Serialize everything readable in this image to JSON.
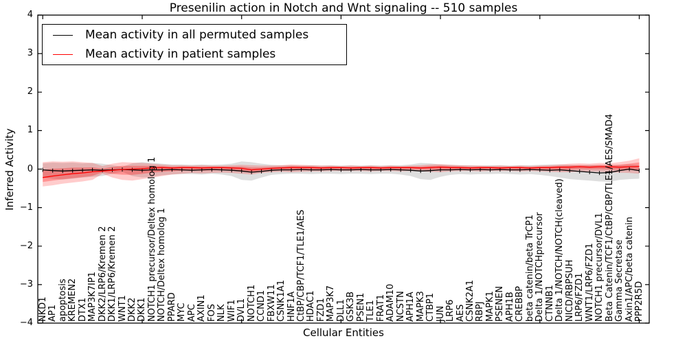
{
  "figure": {
    "title": "Presenilin action in Notch and Wnt signaling -- 510 samples",
    "xlabel": "Cellular Entities",
    "ylabel": "Inferred Activity"
  },
  "legend": {
    "entries": [
      {
        "label": "Mean activity in all permuted samples",
        "color": "#000000"
      },
      {
        "label": "Mean activity in patient samples",
        "color": "#ff0000"
      }
    ]
  },
  "colors": {
    "permuted_line": "#000000",
    "patient_line": "#ff0000",
    "permuted_band": "rgba(0,0,0,0.13)",
    "patient_band_outer": "rgba(255,0,0,0.20)",
    "patient_band_inner": "rgba(255,0,0,0.28)",
    "axes": "#000000",
    "background": "#ffffff"
  },
  "chart_data": {
    "type": "line",
    "title": "Presenilin action in Notch and Wnt signaling -- 510 samples",
    "xlabel": "Cellular Entities",
    "ylabel": "Inferred Activity",
    "ylim": [
      -4,
      4
    ],
    "grid": false,
    "legend_position": "upper left",
    "y_ticks": [
      4,
      3,
      2,
      1,
      0,
      -1,
      -2,
      -3,
      -4
    ],
    "y_tick_labels": [
      "4",
      "3",
      "2",
      "1",
      "0",
      "−1",
      "−2",
      "−3",
      "−4"
    ],
    "x_major_tick_indices": [
      0,
      10,
      20,
      30,
      40,
      50,
      60
    ],
    "categories": [
      "NKD1",
      "AP1",
      "apoptosis",
      "KREMEN2",
      "DTX1",
      "MAP3K7IP1",
      "DKK2/LRP6/Kremen 2",
      "DKK1/LRP6/Kremen 2",
      "WNT1",
      "DKK2",
      "DKK1",
      "NOTCH1 precursor/Deltex homolog 1",
      "NOTCH/Deltex homolog 1",
      "PPARD",
      "MYC",
      "APC",
      "AXIN1",
      "FOS",
      "NLK",
      "WIF1",
      "DVL1",
      "NOTCH1",
      "CCND1",
      "FBXW11",
      "CSNK1A1",
      "HNF1A",
      "CtBP/CBP/TCF1/TLE1/AES",
      "HDAC1",
      "FZD1",
      "MAP3K7",
      "DLL1",
      "GSK3B",
      "PSEN1",
      "TLE1",
      "FRAT1",
      "ADAM10",
      "NCSTN",
      "APH1A",
      "MAPK3",
      "CTBP1",
      "JUN",
      "LRP6",
      "AES",
      "CSNK2A1",
      "RBPJ",
      "MAPK1",
      "PSENEN",
      "APH1B",
      "CREBBP",
      "beta catenin/beta TrCP1",
      "Delta 1/NOTCHprecursor",
      "CTNNB1",
      "Delta 1/NOTCH/NOTCH(cleaved)",
      "NICD/RBPSUH",
      "LRP6/FZD1",
      "WNT1/LRP6/FZD1",
      "NOTCH1 precursor/DVL1",
      "Beta Catenin/TCF1/CtBP/CBP/TLE1/AES/SMAD4",
      "Gamma Secretase",
      "Axin1/APC/beta catenin",
      "PPP2R5D"
    ],
    "series": [
      {
        "name": "Mean activity in all permuted samples",
        "color": "#000000",
        "values": [
          -0.02,
          -0.04,
          -0.05,
          -0.04,
          -0.03,
          -0.02,
          -0.03,
          -0.02,
          -0.01,
          -0.02,
          -0.03,
          -0.02,
          -0.02,
          -0.01,
          -0.02,
          -0.03,
          -0.02,
          -0.01,
          -0.02,
          -0.03,
          -0.05,
          -0.08,
          -0.06,
          -0.03,
          -0.02,
          -0.02,
          -0.01,
          -0.02,
          -0.02,
          -0.01,
          -0.02,
          -0.02,
          -0.01,
          -0.02,
          -0.02,
          -0.01,
          -0.02,
          -0.03,
          -0.05,
          -0.04,
          -0.02,
          -0.02,
          -0.01,
          -0.02,
          -0.01,
          -0.02,
          -0.01,
          -0.02,
          -0.02,
          -0.01,
          -0.02,
          -0.03,
          -0.02,
          -0.04,
          -0.06,
          -0.08,
          -0.1,
          -0.09,
          -0.04,
          0.0,
          -0.04
        ],
        "band_upper": [
          0.15,
          0.17,
          0.16,
          0.17,
          0.15,
          0.16,
          0.14,
          0.1,
          0.06,
          0.15,
          0.18,
          0.16,
          0.14,
          0.12,
          0.12,
          0.11,
          0.12,
          0.11,
          0.12,
          0.14,
          0.2,
          0.18,
          0.14,
          0.11,
          0.1,
          0.1,
          0.09,
          0.1,
          0.09,
          0.1,
          0.09,
          0.1,
          0.09,
          0.1,
          0.09,
          0.1,
          0.1,
          0.12,
          0.16,
          0.15,
          0.12,
          0.11,
          0.1,
          0.1,
          0.09,
          0.1,
          0.1,
          0.09,
          0.1,
          0.1,
          0.11,
          0.12,
          0.12,
          0.11,
          0.1,
          0.11,
          0.1,
          0.09,
          0.1,
          0.12,
          0.1
        ],
        "band_lower": [
          -0.22,
          -0.25,
          -0.27,
          -0.25,
          -0.22,
          -0.2,
          -0.18,
          -0.12,
          -0.07,
          -0.18,
          -0.22,
          -0.2,
          -0.16,
          -0.14,
          -0.13,
          -0.13,
          -0.14,
          -0.12,
          -0.14,
          -0.18,
          -0.28,
          -0.3,
          -0.22,
          -0.15,
          -0.13,
          -0.12,
          -0.12,
          -0.13,
          -0.12,
          -0.12,
          -0.13,
          -0.12,
          -0.12,
          -0.13,
          -0.12,
          -0.12,
          -0.14,
          -0.18,
          -0.26,
          -0.28,
          -0.2,
          -0.15,
          -0.13,
          -0.14,
          -0.13,
          -0.13,
          -0.12,
          -0.13,
          -0.14,
          -0.13,
          -0.15,
          -0.18,
          -0.22,
          -0.26,
          -0.28,
          -0.3,
          -0.32,
          -0.33,
          -0.28,
          -0.26,
          -0.25
        ]
      },
      {
        "name": "Mean activity in patient samples",
        "color": "#ff0000",
        "values": [
          -0.22,
          -0.18,
          -0.15,
          -0.12,
          -0.1,
          -0.07,
          -0.05,
          -0.03,
          -0.01,
          0.0,
          0.01,
          0.03,
          0.04,
          0.03,
          0.04,
          0.04,
          0.03,
          0.04,
          0.04,
          0.03,
          0.02,
          -0.02,
          0.0,
          0.02,
          0.03,
          0.04,
          0.04,
          0.04,
          0.03,
          0.04,
          0.04,
          0.03,
          0.04,
          0.04,
          0.03,
          0.04,
          0.04,
          0.04,
          0.03,
          0.04,
          0.05,
          0.04,
          0.04,
          0.03,
          0.04,
          0.04,
          0.03,
          0.04,
          0.04,
          0.03,
          0.04,
          0.04,
          0.05,
          0.05,
          0.06,
          0.05,
          0.06,
          0.06,
          0.05,
          0.06,
          0.07
        ],
        "band_upper": [
          0.18,
          0.2,
          0.19,
          0.2,
          0.18,
          0.16,
          0.08,
          0.14,
          0.18,
          0.17,
          0.16,
          0.14,
          0.12,
          0.1,
          0.1,
          0.09,
          0.1,
          0.09,
          0.09,
          0.1,
          0.11,
          0.1,
          0.09,
          0.09,
          0.1,
          0.12,
          0.11,
          0.1,
          0.09,
          0.09,
          0.08,
          0.09,
          0.08,
          0.09,
          0.08,
          0.09,
          0.08,
          0.09,
          0.1,
          0.12,
          0.13,
          0.11,
          0.1,
          0.09,
          0.09,
          0.08,
          0.09,
          0.08,
          0.09,
          0.08,
          0.09,
          0.1,
          0.12,
          0.14,
          0.15,
          0.14,
          0.16,
          0.15,
          0.18,
          0.22,
          0.28
        ],
        "band_lower": [
          -0.45,
          -0.42,
          -0.38,
          -0.35,
          -0.32,
          -0.28,
          -0.12,
          -0.22,
          -0.28,
          -0.3,
          -0.26,
          -0.22,
          -0.18,
          -0.14,
          -0.12,
          -0.1,
          -0.11,
          -0.1,
          -0.09,
          -0.1,
          -0.12,
          -0.14,
          -0.1,
          -0.08,
          -0.07,
          -0.08,
          -0.07,
          -0.06,
          -0.06,
          -0.05,
          -0.05,
          -0.05,
          -0.05,
          -0.06,
          -0.05,
          -0.05,
          -0.06,
          -0.05,
          -0.06,
          -0.07,
          -0.08,
          -0.06,
          -0.05,
          -0.05,
          -0.06,
          -0.05,
          -0.05,
          -0.05,
          -0.06,
          -0.05,
          -0.06,
          -0.07,
          -0.08,
          -0.08,
          -0.07,
          -0.06,
          -0.07,
          -0.08,
          -0.09,
          -0.1,
          -0.12
        ]
      }
    ]
  }
}
